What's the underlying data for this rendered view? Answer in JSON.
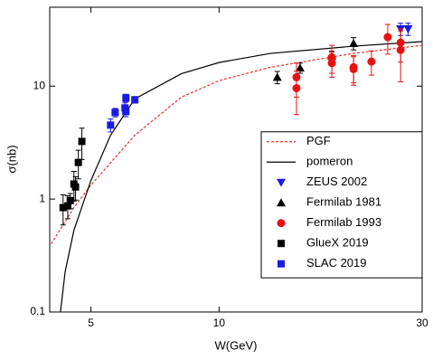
{
  "chart_data": {
    "type": "scatter",
    "x_label": "W(GeV)",
    "y_label": "σ(nb)",
    "xscale": "log",
    "yscale": "log",
    "xlim": [
      4,
      30
    ],
    "ylim": [
      0.1,
      50
    ],
    "xticks": [
      5,
      10,
      30
    ],
    "yticks": [
      0.1,
      1,
      10
    ],
    "legend": "right",
    "series": [
      {
        "name": "PGF",
        "type": "line",
        "style": "dashed",
        "color": "#e8312b",
        "x": [
          4.03,
          4.56,
          5.0,
          6.34,
          8.16,
          10,
          13.2,
          20.7,
          30
        ],
        "values": [
          0.4,
          0.84,
          1.33,
          3.68,
          8.0,
          11.2,
          14.7,
          19.5,
          23.0
        ]
      },
      {
        "name": "pomeron",
        "type": "line",
        "style": "solid",
        "color": "#000000",
        "x": [
          4.24,
          4.35,
          4.56,
          5.0,
          5.56,
          6.34,
          8.16,
          10,
          13.2,
          20.7,
          30
        ],
        "values": [
          0.1,
          0.23,
          0.53,
          1.46,
          3.68,
          7.72,
          12.9,
          16.2,
          19.5,
          22.6,
          24.8
        ]
      },
      {
        "name": "ZEUS 2002",
        "type": "scatter",
        "marker": "triangle-down",
        "color": "#1a1ae6",
        "x": [
          26.7,
          27.8
        ],
        "values": [
          32.1,
          32.1
        ],
        "errors": [
          4,
          4
        ]
      },
      {
        "name": "Fermilab 1981",
        "type": "scatter",
        "marker": "triangle-up",
        "color": "#000000",
        "x": [
          13.7,
          15.5,
          18.4,
          20.7
        ],
        "values": [
          12.0,
          14.5,
          18.4,
          23.9
        ],
        "errors": [
          1.5,
          1.5,
          2,
          3
        ]
      },
      {
        "name": "Fermilab 1993",
        "type": "scatter",
        "marker": "circle",
        "color": "#e8110f",
        "x": [
          15.2,
          15.2,
          18.4,
          18.4,
          20.7,
          20.7,
          22.8,
          24.9,
          26.7,
          26.7
        ],
        "values": [
          12.0,
          9.6,
          18,
          16,
          14.7,
          14.2,
          16.5,
          27.2,
          24.3,
          20.9
        ],
        "errors": [
          4,
          4,
          5,
          4,
          4,
          4,
          4,
          8,
          8,
          10
        ]
      },
      {
        "name": "GlueX 2019",
        "type": "scatter",
        "marker": "square",
        "color": "#000000",
        "x": [
          4.3,
          4.41,
          4.47,
          4.56,
          4.6,
          4.67,
          4.76
        ],
        "values": [
          0.84,
          0.87,
          0.97,
          1.36,
          1.28,
          2.11,
          3.24
        ],
        "errors": [
          0.25,
          0.2,
          0.15,
          0.4,
          0.3,
          0.6,
          1.0
        ]
      },
      {
        "name": "SLAC 2019",
        "type": "scatter",
        "marker": "square",
        "color": "#1a1ae6",
        "x": [
          5.56,
          5.7,
          6.01,
          6.04,
          6.04,
          6.34
        ],
        "values": [
          4.52,
          5.85,
          6.42,
          7.87,
          5.96,
          7.58
        ],
        "errors": [
          0.6,
          0.5,
          0.7,
          0.6,
          0.6,
          0.5
        ]
      }
    ]
  }
}
